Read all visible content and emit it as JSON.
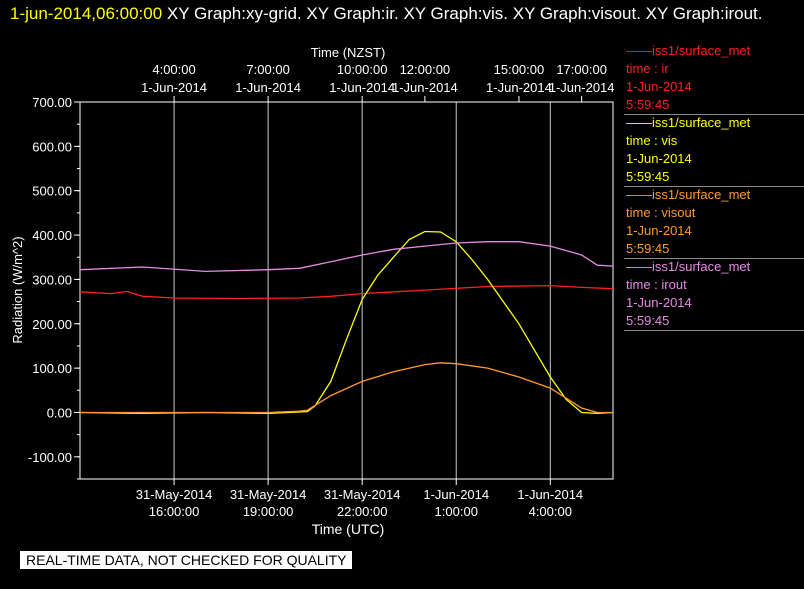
{
  "header": {
    "timestamp": "1-jun-2014,06:00:00",
    "graphs": " XY Graph:xy-grid.  XY Graph:ir.  XY Graph:vis.  XY Graph:visout.  XY Graph:irout."
  },
  "footer": {
    "disclaimer": "REAL-TIME DATA, NOT CHECKED FOR QUALITY"
  },
  "chart_data": {
    "type": "line",
    "title": "",
    "xlabel": "Time (UTC)",
    "x2label": "Time (NZST)",
    "ylabel": "Radiation  (W/m^2)",
    "xlim": [
      "2014-05-31T13:00:00",
      "2014-06-01T06:00:00"
    ],
    "ylim": [
      -150,
      700
    ],
    "grid": true,
    "legend_position": "right",
    "yticks": [
      "700.00",
      "600.00",
      "500.00",
      "400.00",
      "300.00",
      "200.00",
      "100.00",
      "0.00",
      "-100.00"
    ],
    "xticks_bottom": [
      {
        "t": "2014-05-31T16:00:00",
        "date": "31-May-2014",
        "time": "16:00:00"
      },
      {
        "t": "2014-05-31T19:00:00",
        "date": "31-May-2014",
        "time": "19:00:00"
      },
      {
        "t": "2014-05-31T22:00:00",
        "date": "31-May-2014",
        "time": "22:00:00"
      },
      {
        "t": "2014-06-01T01:00:00",
        "date": "1-Jun-2014",
        "time": "1:00:00"
      },
      {
        "t": "2014-06-01T04:00:00",
        "date": "1-Jun-2014",
        "time": "4:00:00"
      }
    ],
    "xticks_top": [
      {
        "t": "2014-05-31T16:00:00",
        "time": "4:00:00",
        "date": "1-Jun-2014"
      },
      {
        "t": "2014-05-31T19:00:00",
        "time": "7:00:00",
        "date": "1-Jun-2014"
      },
      {
        "t": "2014-05-31T22:00:00",
        "time": "10:00:00",
        "date": "1-Jun-2014"
      },
      {
        "t": "2014-06-01T00:00:00",
        "time": "12:00:00",
        "date": "1-Jun-2014"
      },
      {
        "t": "2014-06-01T03:00:00",
        "time": "15:00:00",
        "date": "1-Jun-2014"
      },
      {
        "t": "2014-06-01T05:00:00",
        "time": "17:00:00",
        "date": "1-Jun-2014"
      }
    ],
    "series": [
      {
        "name": "ir",
        "color": "#ff2020",
        "source": "iss1/surface_met",
        "label": "time : ir",
        "date": "1-Jun-2014",
        "time": "5:59:45",
        "x": [
          "2014-05-31T13:00:00",
          "2014-05-31T14:00:00",
          "2014-05-31T14:30:00",
          "2014-05-31T15:00:00",
          "2014-05-31T16:00:00",
          "2014-05-31T18:00:00",
          "2014-05-31T20:00:00",
          "2014-05-31T21:00:00",
          "2014-05-31T22:00:00",
          "2014-06-01T00:00:00",
          "2014-06-01T02:00:00",
          "2014-06-01T04:00:00",
          "2014-06-01T05:00:00",
          "2014-06-01T06:00:00"
        ],
        "values": [
          272,
          268,
          273,
          262,
          258,
          257,
          258,
          262,
          268,
          276,
          284,
          286,
          282,
          279
        ]
      },
      {
        "name": "vis",
        "color": "#ffff00",
        "source": "iss1/surface_met",
        "label": "time : vis",
        "date": "1-Jun-2014",
        "time": "5:59:45",
        "x": [
          "2014-05-31T13:00:00",
          "2014-05-31T15:00:00",
          "2014-05-31T17:00:00",
          "2014-05-31T19:00:00",
          "2014-05-31T20:15:00",
          "2014-05-31T20:30:00",
          "2014-05-31T21:00:00",
          "2014-05-31T21:30:00",
          "2014-05-31T22:00:00",
          "2014-05-31T22:30:00",
          "2014-05-31T23:00:00",
          "2014-05-31T23:30:00",
          "2014-06-01T00:00:00",
          "2014-06-01T00:30:00",
          "2014-06-01T01:00:00",
          "2014-06-01T01:30:00",
          "2014-06-01T02:00:00",
          "2014-06-01T02:30:00",
          "2014-06-01T03:00:00",
          "2014-06-01T03:30:00",
          "2014-06-01T04:00:00",
          "2014-06-01T04:30:00",
          "2014-06-01T05:00:00",
          "2014-06-01T05:30:00",
          "2014-06-01T06:00:00"
        ],
        "values": [
          0,
          -2,
          0,
          -2,
          2,
          15,
          70,
          165,
          255,
          310,
          350,
          390,
          408,
          407,
          385,
          345,
          300,
          250,
          200,
          140,
          80,
          30,
          0,
          -2,
          0
        ]
      },
      {
        "name": "visout",
        "color": "#ff9a2e",
        "source": "iss1/surface_met",
        "label": "time : visout",
        "date": "1-Jun-2014",
        "time": "5:59:45",
        "x": [
          "2014-05-31T13:00:00",
          "2014-05-31T17:00:00",
          "2014-05-31T19:00:00",
          "2014-05-31T20:00:00",
          "2014-05-31T20:15:00",
          "2014-05-31T21:00:00",
          "2014-05-31T22:00:00",
          "2014-05-31T23:00:00",
          "2014-06-01T00:00:00",
          "2014-06-01T00:30:00",
          "2014-06-01T01:00:00",
          "2014-06-01T02:00:00",
          "2014-06-01T03:00:00",
          "2014-06-01T04:00:00",
          "2014-06-01T05:00:00",
          "2014-06-01T05:30:00",
          "2014-06-01T06:00:00"
        ],
        "values": [
          0,
          0,
          0,
          3,
          5,
          38,
          70,
          92,
          108,
          112,
          110,
          100,
          80,
          55,
          10,
          0,
          0
        ]
      },
      {
        "name": "irout",
        "color": "#e58ae5",
        "source": "iss1/surface_met",
        "label": "time : irout",
        "date": "1-Jun-2014",
        "time": "5:59:45",
        "x": [
          "2014-05-31T13:00:00",
          "2014-05-31T15:00:00",
          "2014-05-31T17:00:00",
          "2014-05-31T19:00:00",
          "2014-05-31T20:00:00",
          "2014-05-31T21:00:00",
          "2014-05-31T22:00:00",
          "2014-05-31T23:00:00",
          "2014-06-01T00:00:00",
          "2014-06-01T01:00:00",
          "2014-06-01T02:00:00",
          "2014-06-01T03:00:00",
          "2014-06-01T04:00:00",
          "2014-06-01T05:00:00",
          "2014-06-01T05:30:00",
          "2014-06-01T06:00:00"
        ],
        "values": [
          322,
          328,
          318,
          322,
          325,
          340,
          355,
          368,
          375,
          382,
          385,
          385,
          375,
          355,
          332,
          330
        ]
      }
    ]
  }
}
